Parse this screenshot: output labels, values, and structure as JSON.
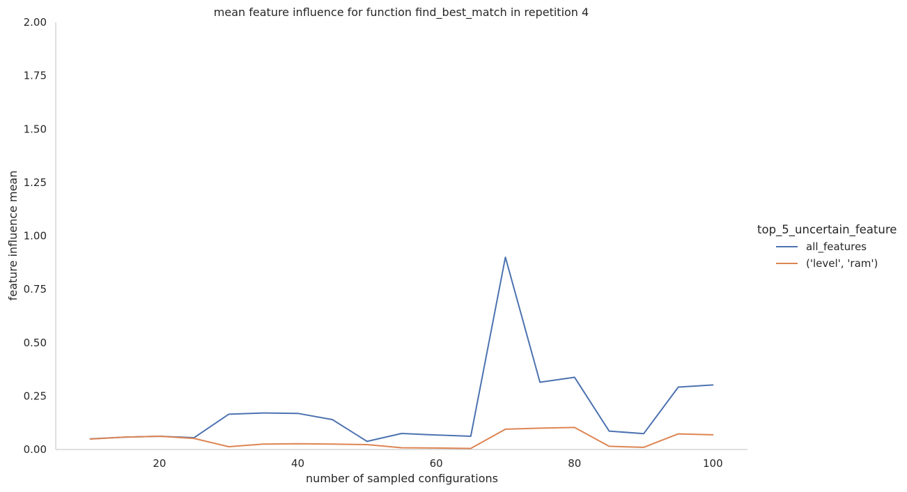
{
  "chart_data": {
    "type": "line",
    "title": "mean feature influence for function find_best_match in repetition 4",
    "xlabel": "number of sampled configurations",
    "ylabel": "feature influence mean",
    "xlim": [
      5,
      105
    ],
    "ylim": [
      0,
      2.0
    ],
    "xticks": [
      "20",
      "40",
      "60",
      "80",
      "100"
    ],
    "xtick_values": [
      20,
      40,
      60,
      80,
      100
    ],
    "yticks": [
      "0.00",
      "0.25",
      "0.50",
      "0.75",
      "1.00",
      "1.25",
      "1.50",
      "1.75",
      "2.00"
    ],
    "ytick_values": [
      0,
      0.25,
      0.5,
      0.75,
      1.0,
      1.25,
      1.5,
      1.75,
      2.0
    ],
    "grid": false,
    "legend_title": "top_5_uncertain_feature",
    "legend_position": "right",
    "x": [
      10,
      15,
      20,
      25,
      30,
      35,
      40,
      45,
      50,
      55,
      60,
      65,
      70,
      75,
      80,
      85,
      90,
      95,
      100
    ],
    "series": [
      {
        "name": "all_features",
        "color": "#4c72b0",
        "values": [
          0.05,
          0.058,
          0.062,
          0.055,
          0.165,
          0.171,
          0.169,
          0.14,
          0.038,
          0.075,
          0.068,
          0.062,
          0.9,
          0.315,
          0.338,
          0.086,
          0.074,
          0.292,
          0.302
        ]
      },
      {
        "name": "('level', 'ram')",
        "color": "#dd8452",
        "values": [
          0.049,
          0.058,
          0.062,
          0.052,
          0.013,
          0.025,
          0.027,
          0.025,
          0.023,
          0.008,
          0.007,
          0.005,
          0.095,
          0.1,
          0.103,
          0.015,
          0.01,
          0.073,
          0.069
        ]
      }
    ]
  }
}
